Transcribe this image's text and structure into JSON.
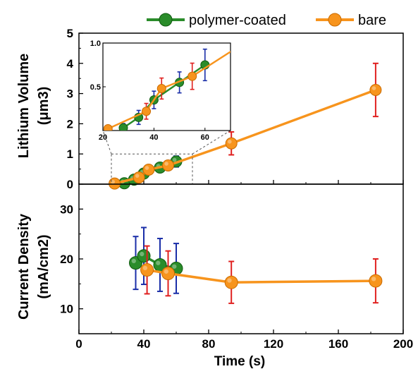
{
  "chart_data": [
    {
      "type": "line",
      "panel": "top",
      "xlabel": "Time (s)",
      "ylabel_line1": "Lithium Volume",
      "ylabel_line2": "(μm3)",
      "xlim": [
        0,
        200
      ],
      "ylim": [
        0,
        5
      ],
      "xticks": [
        "0",
        "40",
        "80",
        "120",
        "160",
        "200"
      ],
      "yticks": [
        "0",
        "1",
        "2",
        "3",
        "4",
        "5"
      ],
      "legend": {
        "placement": "top",
        "entries": [
          "polymer-coated",
          "bare"
        ]
      },
      "series": [
        {
          "name": "polymer-coated",
          "color": "#2a8c2a",
          "errorbar_color": "#1a2ea8",
          "x": [
            28,
            34,
            40,
            50,
            60
          ],
          "y": [
            0.03,
            0.15,
            0.35,
            0.55,
            0.75
          ],
          "yerr": [
            0.05,
            0.08,
            0.1,
            0.12,
            0.18
          ]
        },
        {
          "name": "bare",
          "color": "#f7941d",
          "errorbar_color": "#e0201f",
          "x": [
            22,
            37,
            43,
            55,
            94,
            183
          ],
          "y": [
            0.02,
            0.22,
            0.48,
            0.62,
            1.35,
            3.12
          ],
          "yerr": [
            0.04,
            0.09,
            0.12,
            0.15,
            0.38,
            0.88
          ]
        }
      ],
      "inset": {
        "xlim": [
          20,
          70
        ],
        "ylim": [
          0,
          1.0
        ],
        "xticks": [
          "20",
          "40",
          "60"
        ],
        "yticks": [
          "0.5",
          "1.0"
        ]
      }
    },
    {
      "type": "line",
      "panel": "bottom",
      "xlabel": "Time (s)",
      "ylabel_line1": "Current Density",
      "ylabel_line2": "(mA/cm2)",
      "xlim": [
        0,
        200
      ],
      "ylim": [
        5,
        35
      ],
      "xticks": [
        "0",
        "40",
        "80",
        "120",
        "160",
        "200"
      ],
      "yticks": [
        "10",
        "20",
        "30"
      ],
      "series": [
        {
          "name": "polymer-coated",
          "color": "#2a8c2a",
          "errorbar_color": "#1a2ea8",
          "x": [
            35,
            40,
            50,
            60
          ],
          "y": [
            19.2,
            20.6,
            18.8,
            18.1
          ],
          "yerr": [
            5.3,
            5.7,
            5.3,
            5.0
          ]
        },
        {
          "name": "bare",
          "color": "#f7941d",
          "errorbar_color": "#e0201f",
          "x": [
            42,
            55,
            94,
            183
          ],
          "y": [
            17.8,
            17.1,
            15.3,
            15.6
          ],
          "yerr": [
            4.8,
            4.5,
            4.2,
            4.4
          ]
        }
      ]
    }
  ]
}
